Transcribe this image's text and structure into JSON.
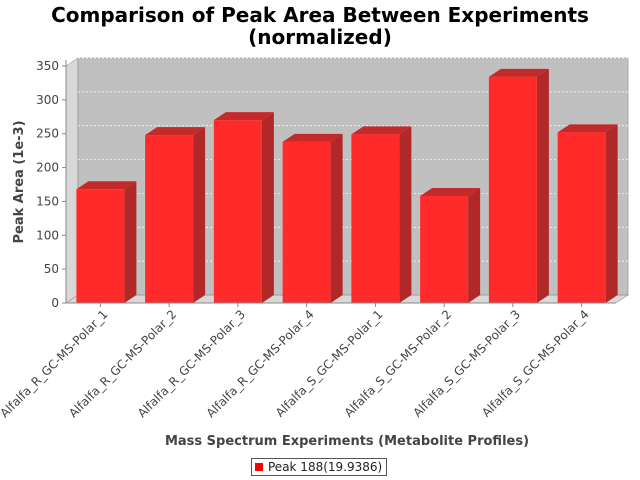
{
  "chart_data": {
    "type": "bar",
    "title_lines": [
      "Comparison of Peak Area Between Experiments",
      "(normalized)"
    ],
    "xlabel": "Mass Spectrum Experiments (Metabolite Profiles)",
    "ylabel": "Peak Area (1e-3)",
    "ylim": [
      0,
      350
    ],
    "yticks": [
      0,
      50,
      100,
      150,
      200,
      250,
      300,
      350
    ],
    "grid": true,
    "legend_position": "bottom-center",
    "categories": [
      "Alfalfa_R_GC-MS-Polar_1",
      "Alfalfa_R_GC-MS-Polar_2",
      "Alfalfa_R_GC-MS-Polar_3",
      "Alfalfa_R_GC-MS-Polar_4",
      "Alfalfa_S_GC-MS-Polar_1",
      "Alfalfa_S_GC-MS-Polar_2",
      "Alfalfa_S_GC-MS-Polar_3",
      "Alfalfa_S_GC-MS-Polar_4"
    ],
    "series": [
      {
        "name": "Peak 188(19.9386)",
        "values": [
          168,
          248,
          270,
          238,
          249,
          158,
          334,
          252
        ]
      }
    ],
    "colors": {
      "bar_front": "#ff2a2a",
      "bar_top": "#c42a2a",
      "bar_side": "#b02828",
      "plot_back": "#c0c0c0",
      "plot_wall": "#d8d8d8"
    }
  }
}
